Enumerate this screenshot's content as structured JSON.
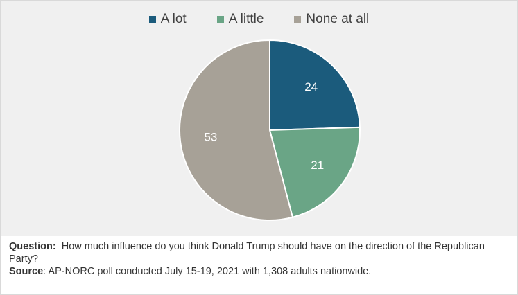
{
  "chart_data": {
    "type": "pie",
    "legend_position": "top",
    "slices": [
      {
        "name": "A lot",
        "value": 24,
        "color": "#1b5b7c"
      },
      {
        "name": "A little",
        "value": 21,
        "color": "#6aa586"
      },
      {
        "name": "None at all",
        "value": 53,
        "color": "#a7a197"
      }
    ]
  },
  "notes": {
    "question_label": "Question:",
    "question_text": "How much influence do you think Donald Trump should have on the direction of the Republican Party?",
    "source_label": "Source",
    "source_text": ": AP-NORC poll conducted July 15-19, 2021 with 1,308 adults nationwide."
  }
}
